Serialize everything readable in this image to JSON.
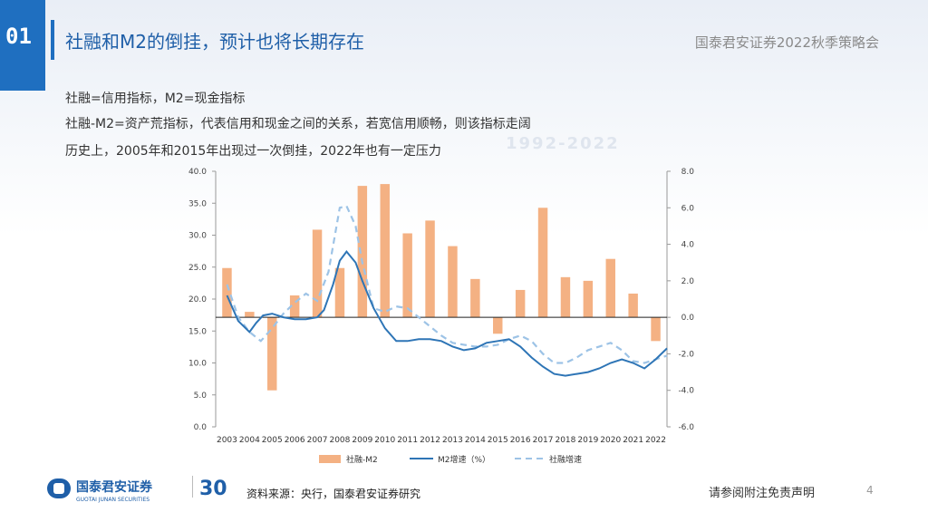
{
  "header": {
    "section_number": "01",
    "title": "社融和M2的倒挂，预计也将长期存在",
    "company": "国泰君安证券2022秋季策略会"
  },
  "notes": [
    "社融=信用指标，M2=现金指标",
    "社融-M2=资产荒指标，代表信用和现金之间的关系，若宽信用顺畅，则该指标走阔",
    "历史上，2005年和2015年出现过一次倒挂，2022年也有一定压力"
  ],
  "watermark": "1992-2022",
  "logo": {
    "name": "国泰君安证券",
    "sub": "GUOTAI JUNAN SECURITIES"
  },
  "footer": {
    "source": "资料来源：央行，国泰君安证券研究",
    "disclaimer": "请参阅附注免责声明",
    "page": "4"
  },
  "colors": {
    "accent": "#1f6fc0",
    "bar": "#f4b183",
    "m2": "#2e75b6",
    "sf": "#9dc3e6"
  },
  "chart_data": {
    "type": "bar",
    "categories": [
      "2003",
      "2004",
      "2005",
      "2006",
      "2007",
      "2008",
      "2009",
      "2010",
      "2011",
      "2012",
      "2013",
      "2014",
      "2015",
      "2016",
      "2017",
      "2018",
      "2019",
      "2020",
      "2021",
      "2022"
    ],
    "left_axis": {
      "ylim": [
        0,
        40
      ],
      "ticks": [
        "0.0",
        "5.0",
        "10.0",
        "15.0",
        "20.0",
        "25.0",
        "30.0",
        "35.0",
        "40.0"
      ]
    },
    "right_axis": {
      "ylim": [
        -6,
        8
      ],
      "ticks": [
        "-6.0",
        "-4.0",
        "-2.0",
        "0.0",
        "2.0",
        "4.0",
        "6.0",
        "8.0"
      ]
    },
    "series": [
      {
        "name": "社融-M2",
        "type": "bar",
        "axis": "right",
        "values": [
          2.7,
          0.3,
          -4.0,
          1.2,
          4.8,
          2.7,
          7.2,
          7.3,
          4.6,
          5.3,
          3.9,
          2.1,
          -0.9,
          1.5,
          6.0,
          2.2,
          2.0,
          3.2,
          1.3,
          -1.3
        ]
      },
      {
        "name": "M2增速（%）",
        "type": "line",
        "axis": "right",
        "points": [
          [
            0,
            1.2
          ],
          [
            0.5,
            -0.2
          ],
          [
            1.0,
            -0.8
          ],
          [
            1.3,
            -0.3
          ],
          [
            1.6,
            0.1
          ],
          [
            2.0,
            0.2
          ],
          [
            2.5,
            0.0
          ],
          [
            3.0,
            -0.1
          ],
          [
            3.5,
            -0.1
          ],
          [
            4.0,
            0.0
          ],
          [
            4.3,
            0.4
          ],
          [
            4.7,
            1.8
          ],
          [
            5.0,
            3.1
          ],
          [
            5.3,
            3.6
          ],
          [
            5.7,
            3.0
          ],
          [
            6.0,
            2.0
          ],
          [
            6.5,
            0.5
          ],
          [
            7.0,
            -0.6
          ],
          [
            7.5,
            -1.3
          ],
          [
            8.0,
            -1.3
          ],
          [
            8.5,
            -1.2
          ],
          [
            9.0,
            -1.2
          ],
          [
            9.5,
            -1.3
          ],
          [
            10.0,
            -1.6
          ],
          [
            10.5,
            -1.8
          ],
          [
            11.0,
            -1.7
          ],
          [
            11.5,
            -1.4
          ],
          [
            12.0,
            -1.3
          ],
          [
            12.5,
            -1.2
          ],
          [
            13.0,
            -1.6
          ],
          [
            13.5,
            -2.2
          ],
          [
            14.0,
            -2.7
          ],
          [
            14.5,
            -3.1
          ],
          [
            15.0,
            -3.2
          ],
          [
            15.5,
            -3.1
          ],
          [
            16.0,
            -3.0
          ],
          [
            16.5,
            -2.8
          ],
          [
            17.0,
            -2.5
          ],
          [
            17.5,
            -2.3
          ],
          [
            18.0,
            -2.5
          ],
          [
            18.5,
            -2.8
          ],
          [
            19.0,
            -2.3
          ],
          [
            19.5,
            -1.7
          ]
        ]
      },
      {
        "name": "社融增速",
        "type": "line",
        "dashed": true,
        "axis": "right",
        "points": [
          [
            0,
            1.8
          ],
          [
            0.5,
            0.0
          ],
          [
            1.0,
            -0.8
          ],
          [
            1.5,
            -1.3
          ],
          [
            2.0,
            -0.6
          ],
          [
            2.5,
            0.2
          ],
          [
            3.0,
            0.8
          ],
          [
            3.5,
            1.3
          ],
          [
            4.0,
            0.9
          ],
          [
            4.5,
            2.5
          ],
          [
            5.0,
            6.0
          ],
          [
            5.3,
            6.1
          ],
          [
            5.7,
            5.0
          ],
          [
            6.0,
            3.0
          ],
          [
            6.5,
            0.5
          ],
          [
            7.0,
            0.3
          ],
          [
            7.5,
            0.6
          ],
          [
            8.0,
            0.5
          ],
          [
            8.5,
            0.0
          ],
          [
            9.0,
            -0.5
          ],
          [
            9.5,
            -1.0
          ],
          [
            10.0,
            -1.4
          ],
          [
            10.5,
            -1.5
          ],
          [
            11.0,
            -1.6
          ],
          [
            11.5,
            -1.6
          ],
          [
            12.0,
            -1.5
          ],
          [
            12.5,
            -1.2
          ],
          [
            13.0,
            -1.0
          ],
          [
            13.5,
            -1.3
          ],
          [
            14.0,
            -2.0
          ],
          [
            14.5,
            -2.5
          ],
          [
            15.0,
            -2.5
          ],
          [
            15.5,
            -2.2
          ],
          [
            16.0,
            -1.8
          ],
          [
            16.5,
            -1.6
          ],
          [
            17.0,
            -1.4
          ],
          [
            17.5,
            -1.8
          ],
          [
            18.0,
            -2.4
          ],
          [
            18.5,
            -2.5
          ],
          [
            19.0,
            -2.3
          ],
          [
            19.5,
            -2.1
          ]
        ]
      }
    ]
  }
}
